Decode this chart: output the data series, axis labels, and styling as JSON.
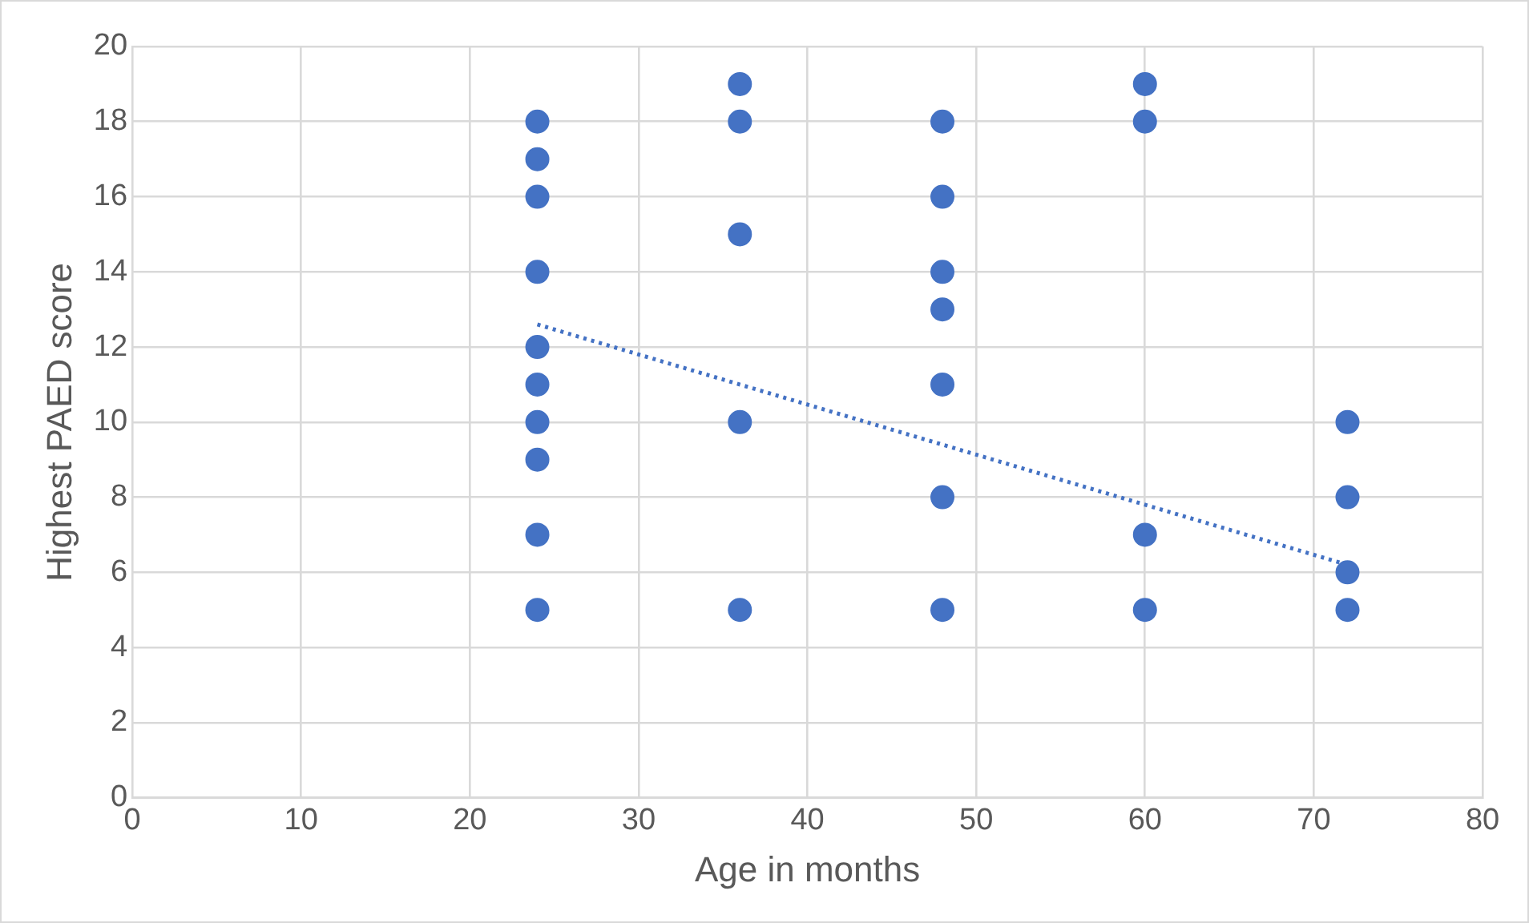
{
  "chart_data": {
    "type": "scatter",
    "xlabel": "Age in months",
    "ylabel": "Highest PAED score",
    "xlim": [
      0,
      80
    ],
    "xticks": [
      0,
      10,
      20,
      30,
      40,
      50,
      60,
      70,
      80
    ],
    "ylim": [
      0,
      20
    ],
    "yticks": [
      0,
      2,
      4,
      6,
      8,
      10,
      12,
      14,
      16,
      18,
      20
    ],
    "grid": true,
    "legend": false,
    "marker": "circle",
    "series": [
      {
        "color": "#4472c4",
        "x": [
          24,
          24,
          24,
          24,
          24,
          24,
          24,
          24,
          24,
          24,
          36,
          36,
          36,
          36,
          36,
          48,
          48,
          48,
          48,
          48,
          48,
          48,
          60,
          60,
          60,
          60,
          72,
          72,
          72,
          72
        ],
        "values": [
          18,
          17,
          16,
          14,
          12,
          11,
          10,
          9,
          7,
          5,
          19,
          18,
          15,
          10,
          5,
          18,
          16,
          14,
          13,
          11,
          8,
          5,
          19,
          18,
          7,
          5,
          10,
          8,
          6,
          5
        ]
      },
      {
        "type": "line",
        "color": "#4472c4",
        "line_style": "dotted",
        "marker": "none",
        "x": [
          24,
          72
        ],
        "values": [
          12.6,
          6.2
        ]
      }
    ]
  }
}
